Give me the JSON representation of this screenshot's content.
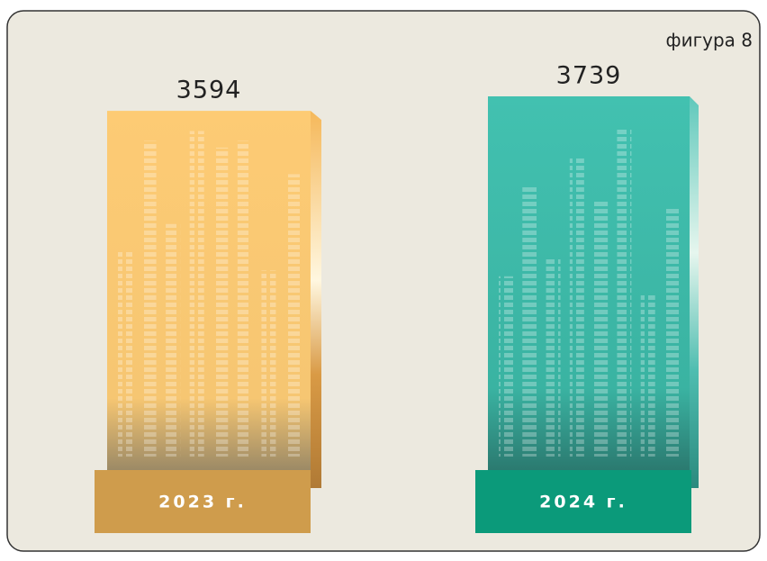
{
  "chart_data": {
    "type": "bar",
    "label": "фигура 8",
    "categories": [
      "2023 г.",
      "2024 г."
    ],
    "values": [
      3594,
      3739
    ],
    "colors": [
      "#cf9c4c",
      "#0b9a7a"
    ]
  }
}
